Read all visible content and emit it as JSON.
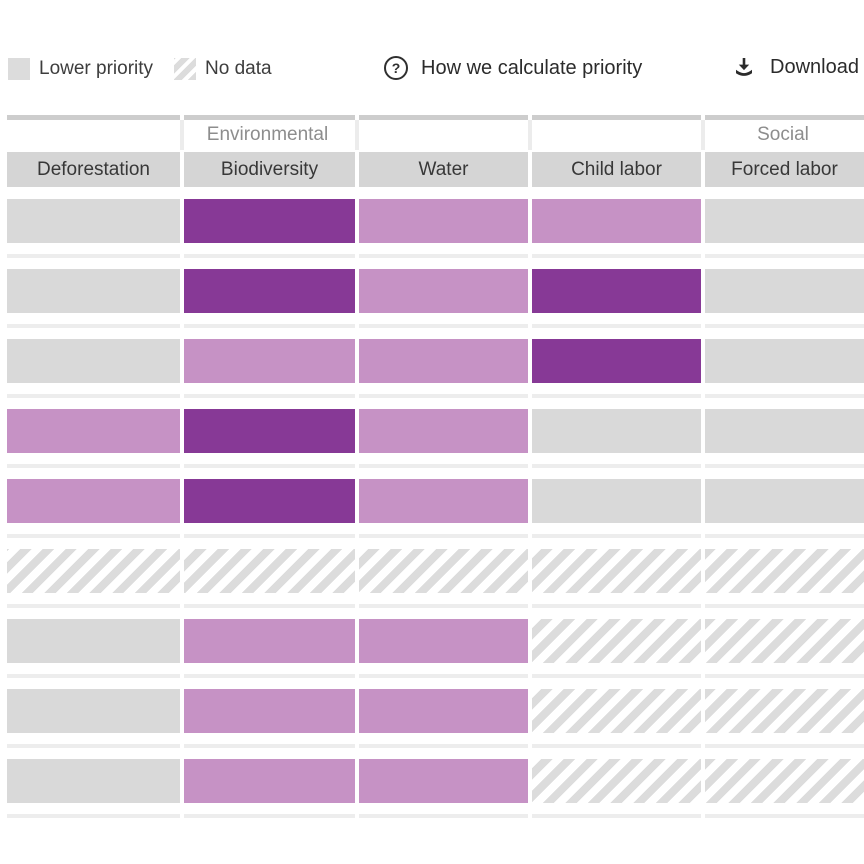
{
  "legend": {
    "items": [
      {
        "id": "lower",
        "label": "Lower priority"
      },
      {
        "id": "no-data",
        "label": "No data"
      }
    ]
  },
  "actions": {
    "help_label": "How we calculate priority",
    "download_label": "Download"
  },
  "table": {
    "column_groups": [
      {
        "label": "Environmental",
        "span": 3
      },
      {
        "label": "Social",
        "span": 2
      }
    ],
    "columns": [
      "Deforestation",
      "Biodiversity",
      "Water",
      "Child labor",
      "Forced labor"
    ],
    "rows": [
      [
        "lower",
        "highest",
        "higher",
        "higher",
        "lower"
      ],
      [
        "lower",
        "highest",
        "higher",
        "highest",
        "lower"
      ],
      [
        "lower",
        "higher",
        "higher",
        "highest",
        "lower"
      ],
      [
        "higher",
        "highest",
        "higher",
        "lower",
        "lower"
      ],
      [
        "higher",
        "highest",
        "higher",
        "lower",
        "lower"
      ],
      [
        "no-data",
        "no-data",
        "no-data",
        "no-data",
        "no-data"
      ],
      [
        "lower",
        "higher",
        "higher",
        "no-data",
        "no-data"
      ],
      [
        "lower",
        "higher",
        "higher",
        "no-data",
        "no-data"
      ],
      [
        "lower",
        "higher",
        "higher",
        "no-data",
        "no-data"
      ]
    ]
  },
  "colors": {
    "lower": "#d9d9d9",
    "higher": "#c692c5",
    "highest": "#873996",
    "no_data_stripe": "#dcdcdc",
    "header_cell": "#d5d5d5"
  }
}
